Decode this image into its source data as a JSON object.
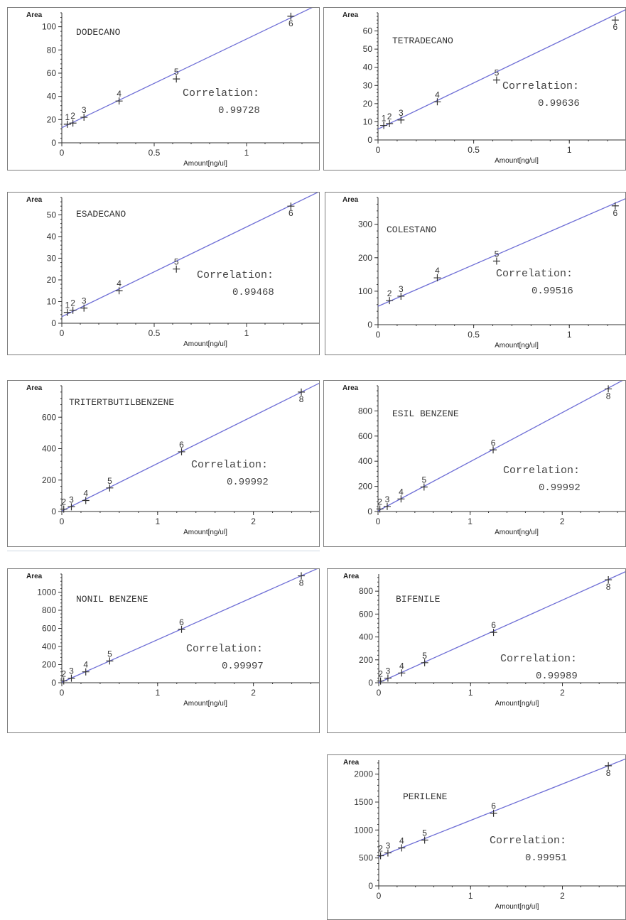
{
  "chart_data": [
    {
      "type": "scatter",
      "title": "DODECANO",
      "ylabel": "Area",
      "xlabel": "Amount[ng/ul]",
      "xlim": [
        0,
        1.4
      ],
      "ylim": [
        0,
        112
      ],
      "x_ticks": [
        "0",
        "0.5",
        "1"
      ],
      "y_ticks": [
        "0",
        "20",
        "40",
        "60",
        "80",
        "100"
      ],
      "annotation": [
        "Correlation:",
        "0.99728"
      ],
      "point_labels": [
        "1",
        "2",
        "3",
        "4",
        "5",
        "6"
      ],
      "x": [
        0.03,
        0.06,
        0.12,
        0.31,
        0.62,
        1.24
      ],
      "y": [
        16,
        17,
        22,
        36,
        55,
        109
      ],
      "fit": [
        [
          0,
          13
        ],
        [
          1.4,
          120
        ]
      ]
    },
    {
      "type": "scatter",
      "title": "TETRADECANO",
      "ylabel": "Area",
      "xlabel": "Amount[ng/ul]",
      "xlim": [
        0,
        1.3
      ],
      "ylim": [
        0,
        70
      ],
      "x_ticks": [
        "0",
        "0.5",
        "1"
      ],
      "y_ticks": [
        "0",
        "10",
        "20",
        "30",
        "40",
        "50",
        "60"
      ],
      "annotation": [
        "Correlation:",
        "0.99636"
      ],
      "point_labels": [
        "1",
        "2",
        "3",
        "4",
        "5",
        "6"
      ],
      "x": [
        0.03,
        0.06,
        0.12,
        0.31,
        0.62,
        1.24
      ],
      "y": [
        8,
        9,
        11,
        21,
        33,
        66
      ],
      "fit": [
        [
          0,
          6
        ],
        [
          1.3,
          72
        ]
      ]
    },
    {
      "type": "scatter",
      "title": "ESADECANO",
      "ylabel": "Area",
      "xlabel": "Amount[ng/ul]",
      "xlim": [
        0,
        1.4
      ],
      "ylim": [
        0,
        58
      ],
      "x_ticks": [
        "0",
        "0.5",
        "1"
      ],
      "y_ticks": [
        "0",
        "10",
        "20",
        "30",
        "40",
        "50"
      ],
      "annotation": [
        "Correlation:",
        "0.99468"
      ],
      "point_labels": [
        "1",
        "2",
        "3",
        "4",
        "5",
        "6"
      ],
      "x": [
        0.03,
        0.06,
        0.12,
        0.31,
        0.62,
        1.24
      ],
      "y": [
        5,
        6,
        7,
        15,
        25,
        54
      ],
      "fit": [
        [
          0,
          3
        ],
        [
          1.4,
          61
        ]
      ]
    },
    {
      "type": "scatter",
      "title": "COLESTANO",
      "ylabel": "Area",
      "xlabel": "Amount[ng/ul]",
      "xlim": [
        0,
        1.3
      ],
      "ylim": [
        0,
        380
      ],
      "x_ticks": [
        "0",
        "0.5",
        "1"
      ],
      "y_ticks": [
        "0",
        "100",
        "200",
        "300"
      ],
      "annotation": [
        "Correlation:",
        "0.99516"
      ],
      "point_labels": [
        "2",
        "3",
        "4",
        "5",
        "6"
      ],
      "x": [
        0.06,
        0.12,
        0.31,
        0.62,
        1.24
      ],
      "y": [
        72,
        85,
        140,
        190,
        355
      ],
      "fit": [
        [
          0,
          55
        ],
        [
          1.3,
          378
        ]
      ]
    },
    {
      "type": "scatter",
      "title": "TRITERTBUTILBENZENE",
      "ylabel": "Area",
      "xlabel": "Amount[ng/ul]",
      "xlim": [
        0,
        2.7
      ],
      "ylim": [
        0,
        800
      ],
      "x_ticks": [
        "0",
        "1",
        "2"
      ],
      "y_ticks": [
        "0",
        "200",
        "400",
        "600"
      ],
      "annotation": [
        "Correlation:",
        "0.99992"
      ],
      "point_labels": [
        "2",
        "3",
        "4",
        "5",
        "6",
        "8"
      ],
      "x": [
        0.02,
        0.1,
        0.25,
        0.5,
        1.25,
        2.5
      ],
      "y": [
        15,
        30,
        70,
        150,
        380,
        760
      ],
      "fit": [
        [
          0,
          3
        ],
        [
          2.7,
          820
        ]
      ]
    },
    {
      "type": "scatter",
      "title": "ESIL BENZENE",
      "ylabel": "Area",
      "xlabel": "Amount[ng/ul]",
      "xlim": [
        0,
        2.7
      ],
      "ylim": [
        0,
        1000
      ],
      "x_ticks": [
        "0",
        "1",
        "2"
      ],
      "y_ticks": [
        "0",
        "200",
        "400",
        "600",
        "800"
      ],
      "annotation": [
        "Correlation:",
        "0.99992"
      ],
      "point_labels": [
        "2",
        "3",
        "4",
        "5",
        "6",
        "8"
      ],
      "x": [
        0.02,
        0.1,
        0.25,
        0.5,
        1.25,
        2.5
      ],
      "y": [
        20,
        40,
        100,
        195,
        490,
        975
      ],
      "fit": [
        [
          0,
          5
        ],
        [
          2.7,
          1060
        ]
      ]
    },
    {
      "type": "scatter",
      "title": "NONIL BENZENE",
      "ylabel": "Area",
      "xlabel": "Amount[ng/ul]",
      "xlim": [
        0,
        2.7
      ],
      "ylim": [
        0,
        1200
      ],
      "x_ticks": [
        "0",
        "1",
        "2"
      ],
      "y_ticks": [
        "0",
        "200",
        "400",
        "600",
        "800",
        "1000"
      ],
      "annotation": [
        "Correlation:",
        "0.99997"
      ],
      "point_labels": [
        "2",
        "3",
        "4",
        "5",
        "6",
        "8"
      ],
      "x": [
        0.02,
        0.1,
        0.25,
        0.5,
        1.25,
        2.5
      ],
      "y": [
        20,
        50,
        120,
        240,
        590,
        1180
      ],
      "fit": [
        [
          0,
          5
        ],
        [
          2.7,
          1275
        ]
      ]
    },
    {
      "type": "scatter",
      "title": "BIFENILE",
      "ylabel": "Area",
      "xlabel": "Amount[ng/ul]",
      "xlim": [
        0,
        2.7
      ],
      "ylim": [
        0,
        950
      ],
      "x_ticks": [
        "0",
        "1",
        "2"
      ],
      "y_ticks": [
        "0",
        "200",
        "400",
        "600",
        "800"
      ],
      "annotation": [
        "Correlation:",
        "0.99989"
      ],
      "point_labels": [
        "2",
        "3",
        "4",
        "5",
        "6",
        "8"
      ],
      "x": [
        0.02,
        0.1,
        0.25,
        0.5,
        1.25,
        2.5
      ],
      "y": [
        15,
        40,
        85,
        175,
        440,
        900
      ],
      "fit": [
        [
          0,
          0
        ],
        [
          2.7,
          975
        ]
      ]
    },
    {
      "type": "scatter",
      "title": "PERILENE",
      "ylabel": "Area",
      "xlabel": "Amount[ng/ul]",
      "xlim": [
        0,
        2.7
      ],
      "ylim": [
        0,
        2250
      ],
      "x_ticks": [
        "0",
        "1",
        "2"
      ],
      "y_ticks": [
        "0",
        "500",
        "1000",
        "1500",
        "2000"
      ],
      "annotation": [
        "Correlation:",
        "0.99951"
      ],
      "point_labels": [
        "2",
        "3",
        "4",
        "5",
        "6",
        "8"
      ],
      "x": [
        0.02,
        0.1,
        0.25,
        0.5,
        1.25,
        2.5
      ],
      "y": [
        540,
        590,
        680,
        820,
        1300,
        2150
      ],
      "fit": [
        [
          0,
          520
        ],
        [
          2.7,
          2280
        ]
      ]
    }
  ],
  "colors": {
    "fit_line": "#6f6fd6",
    "axis": "#333333",
    "frame": "#7d7d7d",
    "marker": "#333333"
  }
}
